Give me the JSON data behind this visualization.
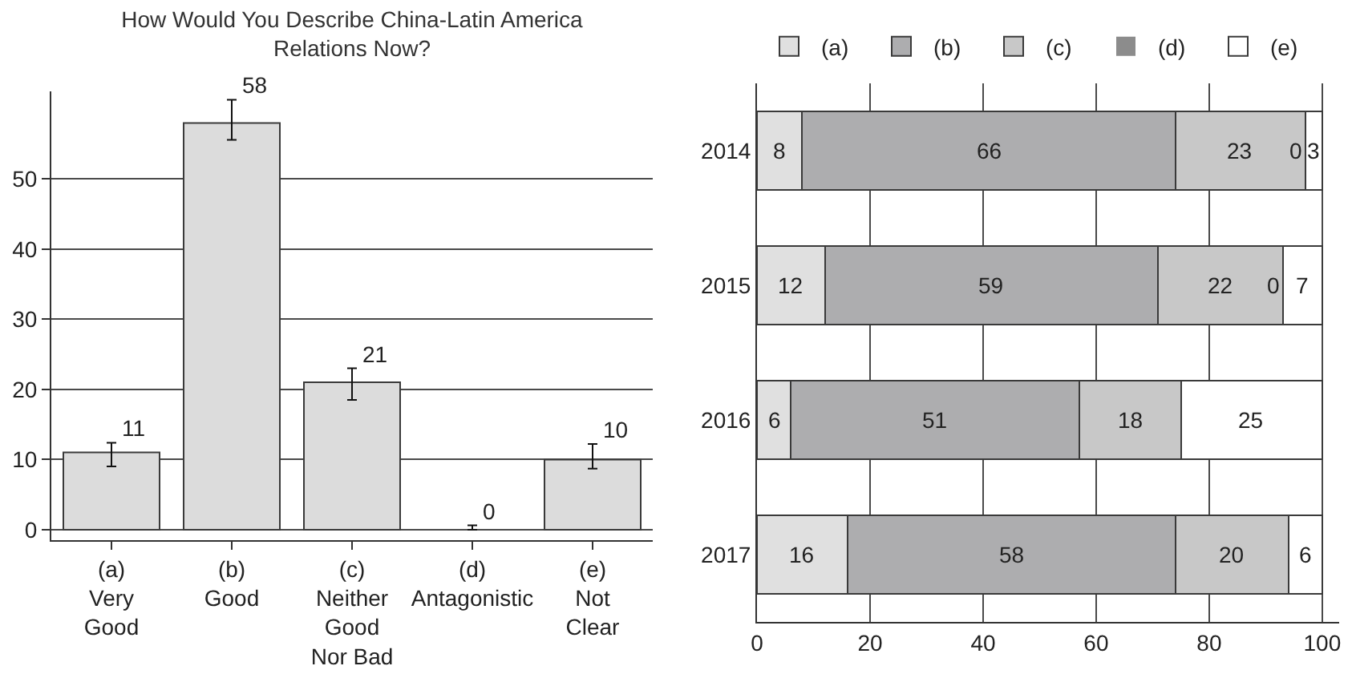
{
  "chart_data": [
    {
      "type": "bar",
      "title": "How Would You Describe China-Latin America Relations Now?",
      "categories": [
        "(a)\nVery\nGood",
        "(b)\nGood",
        "(c)\nNeither\nGood\nNor Bad",
        "(d)\nAntagonistic",
        "(e)\nNot\nClear"
      ],
      "values": [
        11,
        58,
        21,
        0,
        10
      ],
      "errors": [
        [
          9.0,
          12.4
        ],
        [
          55.6,
          61.3
        ],
        [
          18.5,
          23.0
        ],
        [
          0,
          0.6
        ],
        [
          8.7,
          12.2
        ]
      ],
      "color": "#dcdcdc",
      "data_labels": true,
      "ylim": [
        -1.5,
        62.5
      ],
      "yticks": [
        0,
        10,
        20,
        30,
        40,
        50
      ],
      "grid": "y"
    },
    {
      "type": "bar",
      "orientation": "horizontal",
      "stacked": true,
      "categories": [
        "2014",
        "2015",
        "2016",
        "2017"
      ],
      "series": [
        {
          "name": "(a)",
          "color": "#e0e0e0",
          "values": [
            8,
            12,
            6,
            16
          ]
        },
        {
          "name": "(b)",
          "color": "#adadaf",
          "values": [
            66,
            59,
            51,
            58
          ]
        },
        {
          "name": "(c)",
          "color": "#c8c8c8",
          "values": [
            23,
            22,
            18,
            20
          ]
        },
        {
          "name": "(d)",
          "color": "#8c8c8c",
          "values": [
            0,
            0,
            null,
            null
          ]
        },
        {
          "name": "(e)",
          "color": "#ffffff",
          "values": [
            3,
            7,
            25,
            6
          ]
        }
      ],
      "data_labels": true,
      "xlim": [
        0,
        103
      ],
      "xticks": [
        0,
        20,
        40,
        60,
        80,
        100
      ],
      "grid": "x",
      "legend": "top"
    }
  ]
}
